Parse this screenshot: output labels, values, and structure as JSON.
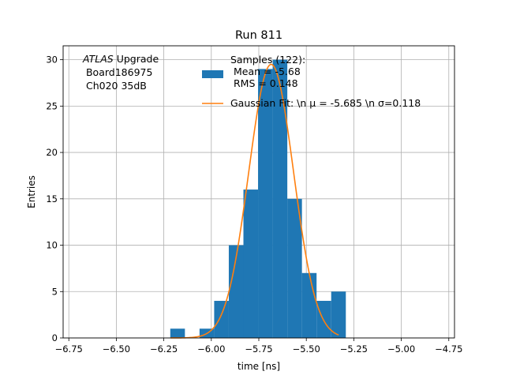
{
  "chart_data": {
    "type": "bar",
    "title": "Run 811",
    "xlabel": "time [ns]",
    "ylabel": "Entries",
    "xlim": [
      -6.78,
      -4.72
    ],
    "ylim": [
      0,
      31.5
    ],
    "grid": true,
    "x_ticks": [
      -6.75,
      -6.5,
      -6.25,
      -6.0,
      -5.75,
      -5.5,
      -5.25,
      -5.0,
      -4.75
    ],
    "x_tick_labels": [
      "−6.75",
      "−6.50",
      "−6.25",
      "−6.00",
      "−5.75",
      "−5.50",
      "−5.25",
      "−5.00",
      "−4.75"
    ],
    "y_ticks": [
      0,
      5,
      10,
      15,
      20,
      25,
      30
    ],
    "y_tick_labels": [
      "0",
      "5",
      "10",
      "15",
      "20",
      "25",
      "30"
    ],
    "histogram": {
      "color": "#1f77b4",
      "bin_edges": [
        -6.216,
        -6.139,
        -6.062,
        -5.985,
        -5.908,
        -5.831,
        -5.754,
        -5.677,
        -5.6,
        -5.523,
        -5.446,
        -5.369,
        -5.292
      ],
      "counts": [
        1,
        0,
        1,
        4,
        10,
        16,
        29,
        30,
        15,
        7,
        4,
        5
      ]
    },
    "gaussian_fit": {
      "color": "#ff7f0e",
      "mu": -5.685,
      "sigma": 0.118,
      "amplitude": 29.5,
      "x_range": [
        -6.215,
        -5.33
      ]
    },
    "annotation_lines": [
      {
        "italic": "ATLAS",
        "rest": " Upgrade"
      },
      {
        "italic": "",
        "rest": " Board186975"
      },
      {
        "italic": "",
        "rest": " Ch020 35dB"
      }
    ],
    "legend": {
      "placement": "top-right",
      "hist_label_lines": [
        "Samples (122):",
        " Mean = -5.68",
        " RMS = 0.148"
      ],
      "fit_label": "Gaussian Fit: \\n μ = -5.685 \\n σ=0.118"
    }
  }
}
